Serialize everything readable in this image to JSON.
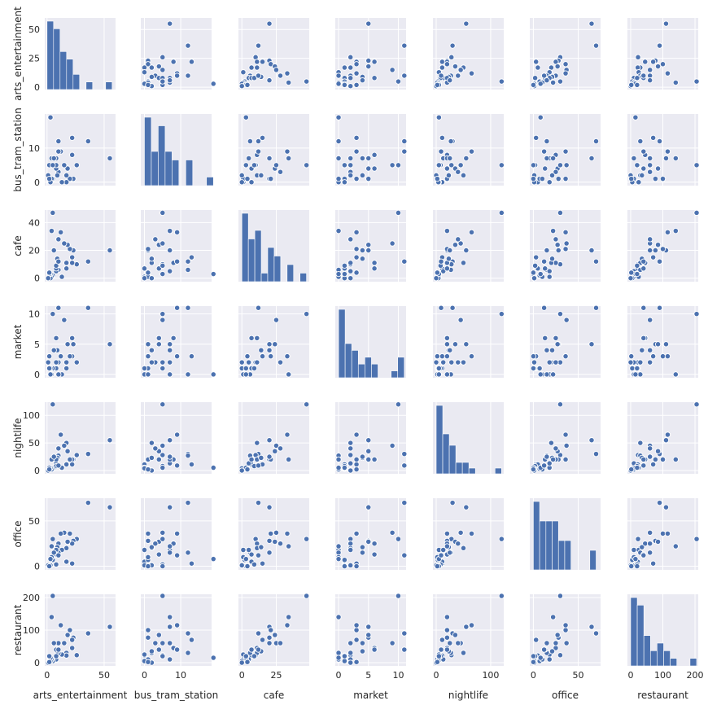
{
  "chart_data": {
    "type": "scatter",
    "variables": [
      "arts_entertainment",
      "bus_tram_station",
      "cafe",
      "market",
      "nightlife",
      "office",
      "restaurant"
    ],
    "axes": {
      "arts_entertainment": {
        "range": [
          -2,
          60
        ],
        "ticks": [
          0,
          50
        ],
        "tick_labels": [
          "0",
          "50"
        ]
      },
      "bus_tram_station": {
        "range": [
          -1,
          18.5
        ],
        "ticks": [
          0,
          10
        ],
        "tick_labels": [
          "0",
          "10"
        ]
      },
      "cafe": {
        "range": [
          -2.5,
          49
        ],
        "ticks": [
          0,
          25
        ],
        "tick_labels": [
          "0",
          "25"
        ]
      },
      "market": {
        "range": [
          -0.55,
          11.3
        ],
        "ticks": [
          0,
          5,
          10
        ],
        "tick_labels": [
          "0",
          "5",
          "10"
        ]
      },
      "nightlife": {
        "range": [
          -6,
          124
        ],
        "ticks": [
          0,
          100
        ],
        "tick_labels": [
          "0",
          "100"
        ]
      },
      "office": {
        "range": [
          -4,
          75
        ],
        "ticks": [
          0,
          50
        ],
        "tick_labels": [
          "0",
          "50"
        ]
      },
      "restaurant": {
        "range": [
          -10,
          210
        ],
        "ticks": [
          0,
          100,
          200
        ],
        "tick_labels": [
          "0",
          "100",
          "200"
        ]
      }
    },
    "y_axes": {
      "arts_entertainment": {
        "range": [
          -2,
          60
        ],
        "ticks": [
          0,
          25,
          50
        ],
        "tick_labels": [
          "0",
          "25",
          "50"
        ]
      },
      "bus_tram_station": {
        "range": [
          -1,
          20
        ],
        "ticks": [
          0,
          10
        ],
        "tick_labels": [
          "0",
          "10"
        ]
      },
      "cafe": {
        "range": [
          -2.5,
          49
        ],
        "ticks": [
          0,
          20,
          40
        ],
        "tick_labels": [
          "0",
          "20",
          "40"
        ]
      },
      "market": {
        "range": [
          -0.55,
          11.3
        ],
        "ticks": [
          0,
          5,
          10
        ],
        "tick_labels": [
          "0",
          "5",
          "10"
        ]
      },
      "nightlife": {
        "range": [
          -6,
          124
        ],
        "ticks": [
          0,
          50,
          100
        ],
        "tick_labels": [
          "0",
          "50",
          "100"
        ]
      },
      "office": {
        "range": [
          -4,
          75
        ],
        "ticks": [
          0,
          50
        ],
        "tick_labels": [
          "0",
          "50"
        ]
      },
      "restaurant": {
        "range": [
          -10,
          210
        ],
        "ticks": [
          0,
          100,
          200
        ],
        "tick_labels": [
          "0",
          "100",
          "200"
        ]
      }
    },
    "observations": [
      [
        55,
        7,
        20,
        5,
        55,
        65,
        110
      ],
      [
        36,
        12,
        12,
        11,
        30,
        70,
        90
      ],
      [
        26,
        5,
        10,
        2,
        28,
        30,
        23
      ],
      [
        23,
        1,
        20,
        5,
        20,
        28,
        77
      ],
      [
        22,
        13,
        15,
        3,
        11,
        3,
        70
      ],
      [
        22,
        8,
        11,
        6,
        20,
        25,
        45
      ],
      [
        20,
        1,
        21,
        3,
        20,
        36,
        100
      ],
      [
        18,
        4,
        24,
        5,
        35,
        27,
        85
      ],
      [
        17,
        2,
        11,
        2,
        50,
        20,
        30
      ],
      [
        17,
        0,
        7,
        1,
        11,
        5,
        22
      ],
      [
        15,
        5,
        25,
        9,
        45,
        37,
        60
      ],
      [
        13,
        0,
        1,
        0,
        5,
        18,
        25
      ],
      [
        12,
        9,
        33,
        3,
        65,
        36,
        115
      ],
      [
        10,
        3,
        28,
        2,
        40,
        25,
        60
      ],
      [
        10,
        12,
        6,
        0,
        27,
        15,
        30
      ],
      [
        9,
        2,
        14,
        4,
        23,
        21,
        35
      ],
      [
        8,
        7,
        5,
        2,
        13,
        18,
        10
      ],
      [
        8,
        4,
        7,
        6,
        20,
        13,
        40
      ],
      [
        8,
        5,
        9,
        1,
        8,
        2,
        20
      ],
      [
        5,
        1,
        2,
        1,
        3,
        7,
        5
      ],
      [
        4,
        7,
        34,
        0,
        20,
        22,
        140
      ],
      [
        4,
        1,
        1,
        0,
        2,
        10,
        10
      ],
      [
        3,
        0,
        0,
        1,
        4,
        1,
        5
      ],
      [
        3,
        19,
        3,
        0,
        5,
        8,
        15
      ],
      [
        2,
        5,
        3,
        1,
        5,
        0,
        20
      ],
      [
        1,
        2,
        0,
        2,
        0,
        1,
        0
      ],
      [
        2,
        1,
        4,
        3,
        2,
        0,
        2
      ],
      [
        5,
        5,
        47,
        10,
        120,
        30,
        205
      ],
      [
        6,
        7,
        20,
        4,
        25,
        15,
        60
      ],
      [
        10,
        9,
        12,
        11,
        9,
        12,
        40
      ]
    ],
    "histograms": {
      "arts_entertainment": {
        "bins": 10,
        "range": [
          0,
          57
        ]
      },
      "bus_tram_station": {
        "bins": 10,
        "range": [
          0,
          19
        ]
      },
      "cafe": {
        "bins": 10,
        "range": [
          0,
          47
        ]
      },
      "market": {
        "bins": 10,
        "range": [
          0,
          11
        ]
      },
      "nightlife": {
        "bins": 10,
        "range": [
          0,
          120
        ]
      },
      "office": {
        "bins": 10,
        "range": [
          0,
          70
        ]
      },
      "restaurant": {
        "bins": 10,
        "range": [
          0,
          205
        ]
      }
    },
    "grid": true,
    "colors": {
      "marker": "#4c72b0",
      "background": "#eaeaf2",
      "grid": "#ffffff",
      "text": "#262626"
    }
  }
}
